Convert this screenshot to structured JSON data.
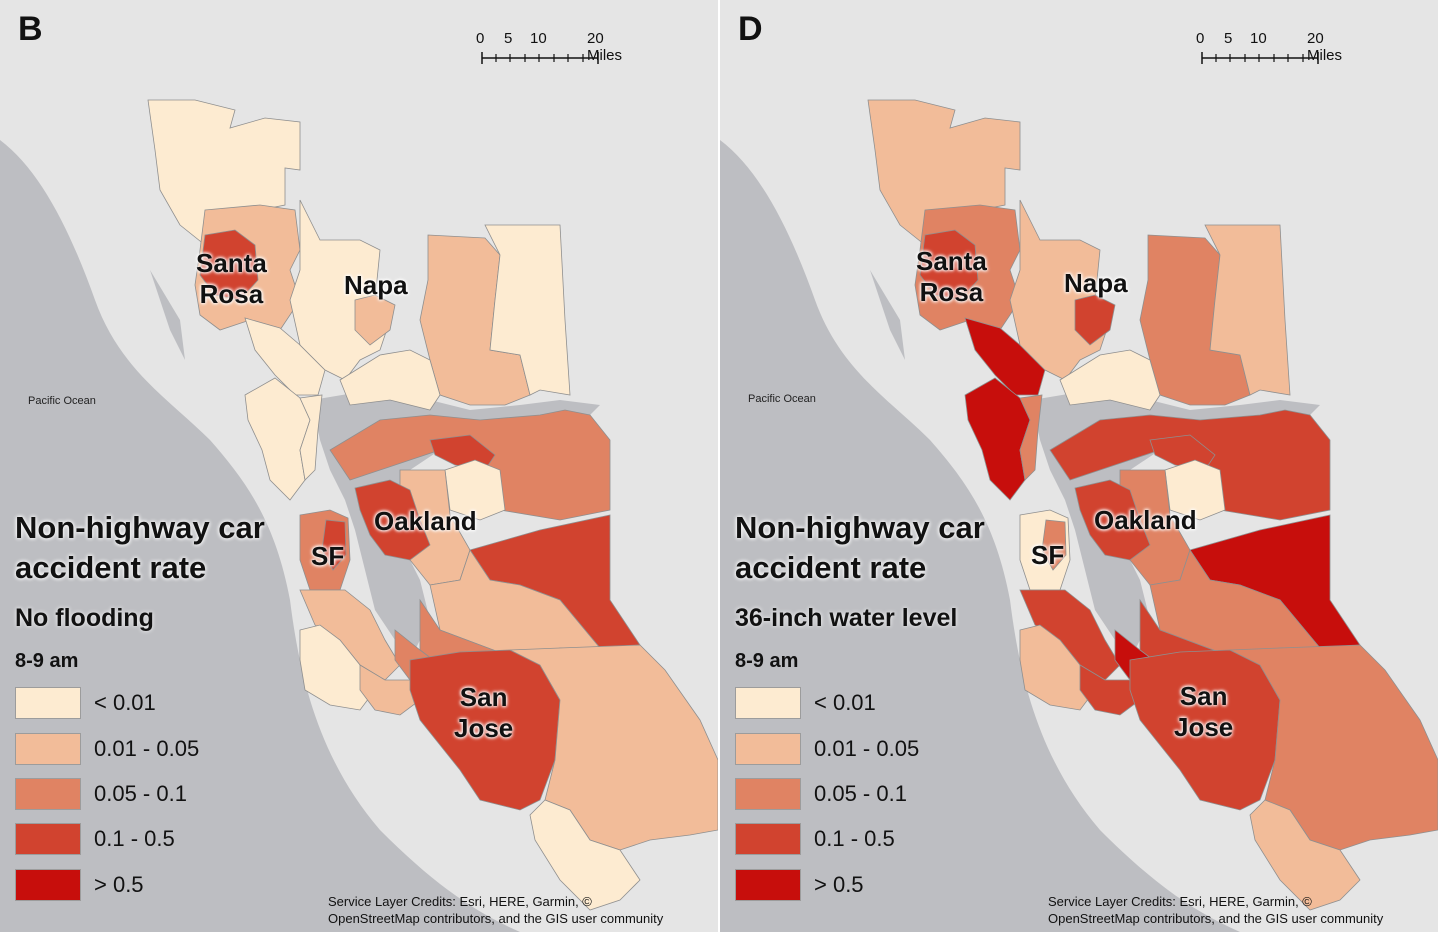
{
  "colors": {
    "background": "#e5e5e5",
    "water": "#bdbec2",
    "class_lt_0_01": "#fdebd1",
    "class_0_01_0_05": "#f2bc99",
    "class_0_05_0_1": "#e08363",
    "class_0_1_0_5": "#d1432f",
    "class_gt_0_5": "#c70e0c"
  },
  "panels": [
    {
      "letter": "B",
      "scale_labels": [
        "0",
        "5",
        "10",
        "20 Miles"
      ],
      "ocean_label": "Pacific Ocean",
      "cities": {
        "santa_rosa": [
          "Santa",
          "Rosa"
        ],
        "napa": "Napa",
        "oakland": "Oakland",
        "sf": "SF",
        "san_jose": [
          "San",
          "Jose"
        ]
      },
      "legend": {
        "title_lines": [
          "Non-highway car",
          "accident rate"
        ],
        "scenario": "No flooding",
        "time": "8-9 am",
        "items": [
          {
            "label": "< 0.01",
            "color": "#fdebd1"
          },
          {
            "label": "0.01 - 0.05",
            "color": "#f2bc99"
          },
          {
            "label": "0.05 - 0.1",
            "color": "#e08363"
          },
          {
            "label": "0.1 - 0.5",
            "color": "#d1432f"
          },
          {
            "label": "> 0.5",
            "color": "#c70e0c"
          }
        ]
      },
      "credits_lines": [
        "Service Layer Credits: Esri, HERE, Garmin, ©",
        "OpenStreetMap contributors, and the GIS user community"
      ],
      "regions": [
        {
          "name": "north-sonoma",
          "class": 0
        },
        {
          "name": "santa-rosa-core",
          "class": 3
        },
        {
          "name": "santa-rosa-ring",
          "class": 1
        },
        {
          "name": "petaluma",
          "class": 0
        },
        {
          "name": "napa-valley",
          "class": 0
        },
        {
          "name": "napa-city",
          "class": 1
        },
        {
          "name": "solano-west",
          "class": 1
        },
        {
          "name": "solano-east",
          "class": 0
        },
        {
          "name": "vallejo",
          "class": 0
        },
        {
          "name": "marin-coast",
          "class": 0
        },
        {
          "name": "marin-east",
          "class": 0
        },
        {
          "name": "contra-costa-west",
          "class": 2
        },
        {
          "name": "richmond",
          "class": 3
        },
        {
          "name": "concord",
          "class": 1
        },
        {
          "name": "walnut-creek",
          "class": 0
        },
        {
          "name": "oakland-core",
          "class": 3
        },
        {
          "name": "hayward",
          "class": 1
        },
        {
          "name": "livermore",
          "class": 3
        },
        {
          "name": "fremont",
          "class": 2
        },
        {
          "name": "sf-city",
          "class": 2
        },
        {
          "name": "sf-core",
          "class": 3
        },
        {
          "name": "peninsula-north",
          "class": 1
        },
        {
          "name": "peninsula-coast",
          "class": 0
        },
        {
          "name": "peninsula-south",
          "class": 1
        },
        {
          "name": "palo-alto",
          "class": 2
        },
        {
          "name": "san-jose-core",
          "class": 3
        },
        {
          "name": "santa-clara-east",
          "class": 1
        },
        {
          "name": "south-county",
          "class": 0
        }
      ]
    },
    {
      "letter": "D",
      "scale_labels": [
        "0",
        "5",
        "10",
        "20 Miles"
      ],
      "ocean_label": "Pacific Ocean",
      "cities": {
        "santa_rosa": [
          "Santa",
          "Rosa"
        ],
        "napa": "Napa",
        "oakland": "Oakland",
        "sf": "SF",
        "san_jose": [
          "San",
          "Jose"
        ]
      },
      "legend": {
        "title_lines": [
          "Non-highway car",
          "accident rate"
        ],
        "scenario": "36-inch water level",
        "time": "8-9 am",
        "items": [
          {
            "label": "< 0.01",
            "color": "#fdebd1"
          },
          {
            "label": "0.01 - 0.05",
            "color": "#f2bc99"
          },
          {
            "label": "0.05 - 0.1",
            "color": "#e08363"
          },
          {
            "label": "0.1 - 0.5",
            "color": "#d1432f"
          },
          {
            "label": "> 0.5",
            "color": "#c70e0c"
          }
        ]
      },
      "credits_lines": [
        "Service Layer Credits: Esri, HERE, Garmin, ©",
        "OpenStreetMap contributors, and the GIS user community"
      ],
      "regions": [
        {
          "name": "north-sonoma",
          "class": 1
        },
        {
          "name": "santa-rosa-core",
          "class": 3
        },
        {
          "name": "santa-rosa-ring",
          "class": 2
        },
        {
          "name": "petaluma",
          "class": 4
        },
        {
          "name": "napa-valley",
          "class": 1
        },
        {
          "name": "napa-city",
          "class": 3
        },
        {
          "name": "solano-west",
          "class": 2
        },
        {
          "name": "solano-east",
          "class": 1
        },
        {
          "name": "vallejo",
          "class": 0
        },
        {
          "name": "marin-coast",
          "class": 4
        },
        {
          "name": "marin-east",
          "class": 2
        },
        {
          "name": "contra-costa-west",
          "class": 3
        },
        {
          "name": "richmond",
          "class": 3
        },
        {
          "name": "concord",
          "class": 2
        },
        {
          "name": "walnut-creek",
          "class": 0
        },
        {
          "name": "oakland-core",
          "class": 3
        },
        {
          "name": "hayward",
          "class": 2
        },
        {
          "name": "livermore",
          "class": 4
        },
        {
          "name": "fremont",
          "class": 3
        },
        {
          "name": "sf-city",
          "class": 0
        },
        {
          "name": "sf-core",
          "class": 2
        },
        {
          "name": "peninsula-north",
          "class": 3
        },
        {
          "name": "peninsula-coast",
          "class": 1
        },
        {
          "name": "peninsula-south",
          "class": 3
        },
        {
          "name": "palo-alto",
          "class": 4
        },
        {
          "name": "san-jose-core",
          "class": 3
        },
        {
          "name": "santa-clara-east",
          "class": 2
        },
        {
          "name": "south-county",
          "class": 1
        }
      ]
    }
  ]
}
